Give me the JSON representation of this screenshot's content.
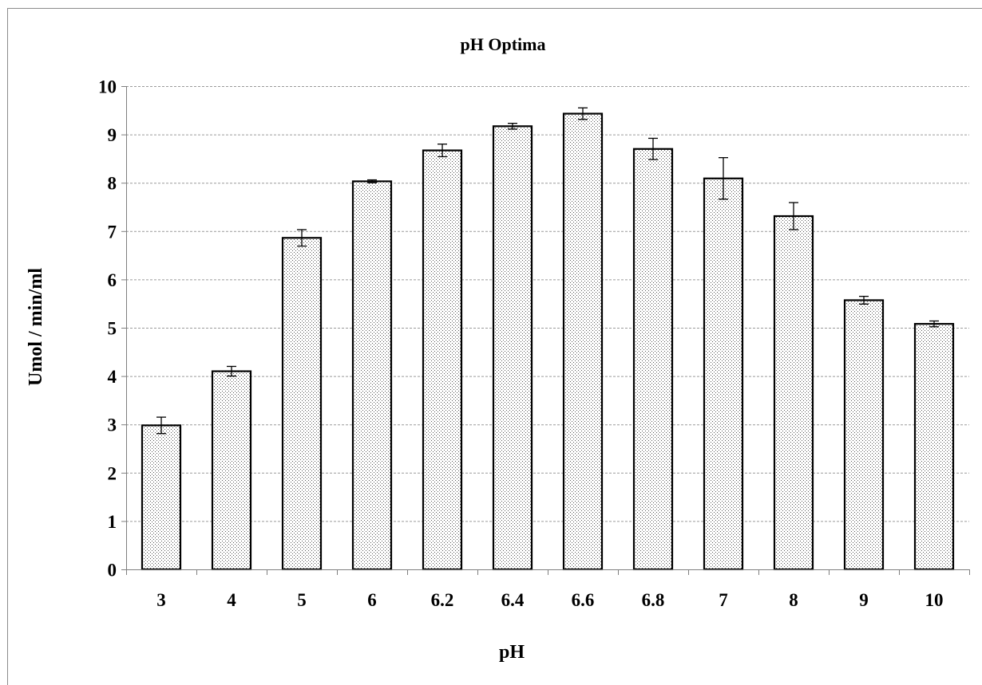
{
  "chart_data": {
    "type": "bar",
    "title": "pH Optima",
    "xlabel": "pH",
    "ylabel": "Umol / min/ml",
    "categories": [
      "3",
      "4",
      "5",
      "6",
      "6.2",
      "6.4",
      "6.6",
      "6.8",
      "7",
      "8",
      "9",
      "10"
    ],
    "values": [
      2.98,
      4.1,
      6.86,
      8.03,
      8.67,
      9.17,
      9.43,
      8.7,
      8.09,
      7.31,
      5.57,
      5.08
    ],
    "error": [
      0.17,
      0.1,
      0.17,
      0.03,
      0.13,
      0.06,
      0.12,
      0.22,
      0.43,
      0.28,
      0.08,
      0.06
    ],
    "ylim": [
      0,
      10
    ],
    "yticks": [
      "0",
      "1",
      "2",
      "3",
      "4",
      "5",
      "6",
      "7",
      "8",
      "9",
      "10"
    ],
    "grid": true,
    "bar_pattern": "dotted",
    "colors": {
      "bar_fill": "#ffffff",
      "bar_dots": "#555555",
      "bar_edge": "#000000",
      "grid": "#9a9a9a",
      "axis": "#7f7f7f"
    }
  }
}
